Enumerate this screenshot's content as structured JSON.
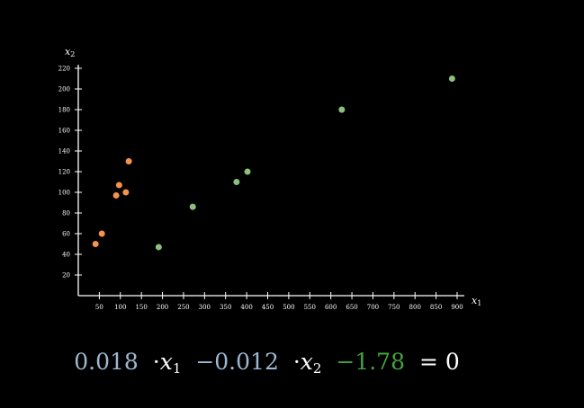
{
  "chart_data": {
    "type": "scatter",
    "title": "",
    "xlabel": "x",
    "xlabel_sub": "1",
    "ylabel": "x",
    "ylabel_sub": "2",
    "xlim": [
      0,
      900
    ],
    "ylim": [
      0,
      220
    ],
    "x_ticks": [
      50,
      100,
      150,
      200,
      250,
      300,
      350,
      400,
      450,
      500,
      550,
      600,
      650,
      700,
      750,
      800,
      850,
      900
    ],
    "y_ticks": [
      20,
      40,
      60,
      80,
      100,
      120,
      140,
      160,
      180,
      200,
      220
    ],
    "grid": false,
    "series": [
      {
        "color": "#f5924d",
        "points": [
          {
            "x": 41,
            "y": 50
          },
          {
            "x": 56,
            "y": 60
          },
          {
            "x": 90,
            "y": 97
          },
          {
            "x": 97,
            "y": 107
          },
          {
            "x": 113,
            "y": 100
          },
          {
            "x": 120,
            "y": 130
          }
        ]
      },
      {
        "color": "#8cc07c",
        "points": [
          {
            "x": 191,
            "y": 47
          },
          {
            "x": 272,
            "y": 86
          },
          {
            "x": 376,
            "y": 110
          },
          {
            "x": 402,
            "y": 120
          },
          {
            "x": 626,
            "y": 180
          },
          {
            "x": 888,
            "y": 210
          }
        ]
      }
    ]
  },
  "equation": {
    "coef1": "0.018",
    "dot1": "·",
    "var1": "x",
    "sub1": "1",
    "coef2": "−0.012",
    "dot2": "·",
    "var2": "x",
    "sub2": "2",
    "intercept": "−1.78",
    "equals": "= 0",
    "colors": {
      "coefficient": "#9db8d0",
      "intercept": "#45a33e",
      "text": "#ffffff"
    }
  }
}
